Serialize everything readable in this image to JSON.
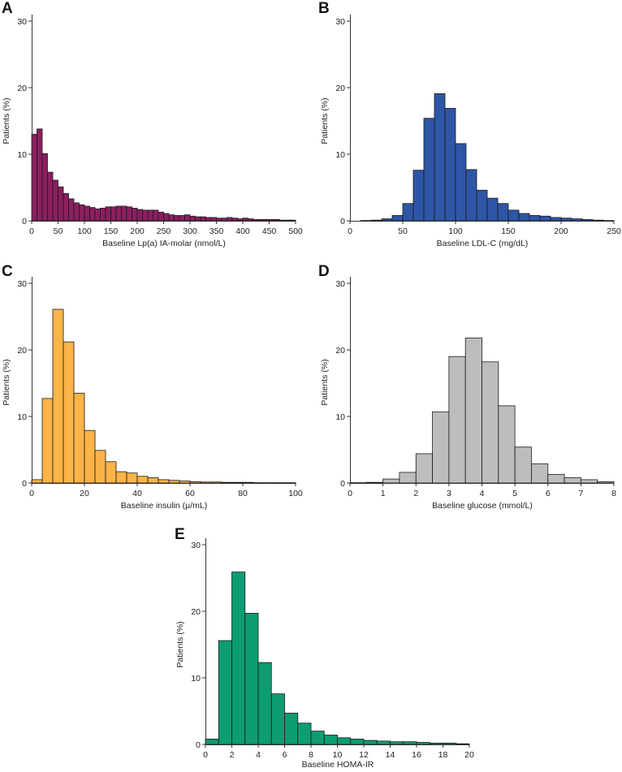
{
  "chart_data": [
    {
      "id": "A",
      "type": "bar",
      "panel_label": "A",
      "xlabel": "Baseline Lp(a) IA-molar (nmol/L)",
      "ylabel": "Patients (%)",
      "color": "#8B1F5F",
      "xlim": [
        0,
        500
      ],
      "ylim": [
        0,
        30
      ],
      "xticks": [
        0,
        50,
        100,
        150,
        200,
        250,
        300,
        350,
        400,
        450,
        500
      ],
      "yticks": [
        0,
        10,
        20,
        30
      ],
      "bin_start": 0,
      "bin_width": 10,
      "values": [
        13.0,
        13.8,
        10.1,
        7.3,
        6.1,
        5.1,
        4.1,
        3.3,
        2.7,
        2.4,
        2.2,
        2.0,
        1.8,
        1.9,
        2.1,
        2.1,
        2.2,
        2.2,
        2.1,
        1.9,
        1.7,
        1.6,
        1.6,
        1.6,
        1.3,
        1.1,
        0.9,
        0.8,
        0.8,
        0.9,
        0.7,
        0.6,
        0.6,
        0.5,
        0.5,
        0.4,
        0.4,
        0.5,
        0.4,
        0.3,
        0.4,
        0.3,
        0.2,
        0.2,
        0.2,
        0.2,
        0.2,
        0.1,
        0.1,
        0.1
      ]
    },
    {
      "id": "B",
      "type": "bar",
      "panel_label": "B",
      "xlabel": "Baseline LDL-C (mg/dL)",
      "ylabel": "Patients (%)",
      "color": "#2E56A6",
      "xlim": [
        0,
        250
      ],
      "ylim": [
        0,
        30
      ],
      "xticks": [
        0,
        50,
        100,
        150,
        200,
        250
      ],
      "yticks": [
        0,
        10,
        20,
        30
      ],
      "bin_start": 10,
      "bin_width": 10,
      "values": [
        0.05,
        0.1,
        0.3,
        0.8,
        2.6,
        7.6,
        15.4,
        19.1,
        16.9,
        11.6,
        7.7,
        4.6,
        3.4,
        2.6,
        1.6,
        1.1,
        0.8,
        0.7,
        0.5,
        0.4,
        0.3,
        0.2,
        0.1,
        0.05
      ]
    },
    {
      "id": "C",
      "type": "bar",
      "panel_label": "C",
      "xlabel": "Baseline insulin (μ/mL)",
      "ylabel": "Patients (%)",
      "color": "#FBB447",
      "xlim": [
        0,
        100
      ],
      "ylim": [
        0,
        30
      ],
      "xticks": [
        0,
        20,
        40,
        60,
        80,
        100
      ],
      "yticks": [
        0,
        10,
        20,
        30
      ],
      "bin_start": 0,
      "bin_width": 4,
      "values": [
        0.5,
        12.7,
        26.1,
        21.2,
        13.5,
        7.9,
        4.9,
        3.2,
        1.7,
        1.5,
        1.0,
        0.8,
        0.5,
        0.4,
        0.3,
        0.2,
        0.15,
        0.15,
        0.1,
        0.1,
        0.1,
        0.05,
        0.05,
        0.05,
        0.05
      ]
    },
    {
      "id": "D",
      "type": "bar",
      "panel_label": "D",
      "xlabel": "Baseline glucose (mmol/L)",
      "ylabel": "Patients (%)",
      "color": "#BDBDBD",
      "xlim": [
        0,
        8
      ],
      "ylim": [
        0,
        30
      ],
      "xticks": [
        0,
        1,
        2,
        3,
        4,
        5,
        6,
        7,
        8
      ],
      "yticks": [
        0,
        10,
        20,
        30
      ],
      "bin_start": 0,
      "bin_width": 0.5,
      "values": [
        0.05,
        0.1,
        0.6,
        1.6,
        4.4,
        10.7,
        19.0,
        21.8,
        18.2,
        11.6,
        5.4,
        2.9,
        1.3,
        0.8,
        0.5,
        0.2
      ]
    },
    {
      "id": "E",
      "type": "bar",
      "panel_label": "E",
      "xlabel": "Baseline HOMA-IR",
      "ylabel": "Patients (%)",
      "color": "#0E9C72",
      "xlim": [
        0,
        20
      ],
      "ylim": [
        0,
        30
      ],
      "xticks": [
        0,
        2,
        4,
        6,
        8,
        10,
        12,
        14,
        16,
        18,
        20
      ],
      "yticks": [
        0,
        10,
        20,
        30
      ],
      "bin_start": 0,
      "bin_width": 1,
      "values": [
        0.8,
        15.6,
        25.9,
        19.7,
        12.3,
        7.6,
        4.7,
        3.2,
        2.0,
        1.4,
        1.0,
        0.8,
        0.6,
        0.5,
        0.4,
        0.4,
        0.3,
        0.2,
        0.2,
        0.1
      ]
    }
  ]
}
